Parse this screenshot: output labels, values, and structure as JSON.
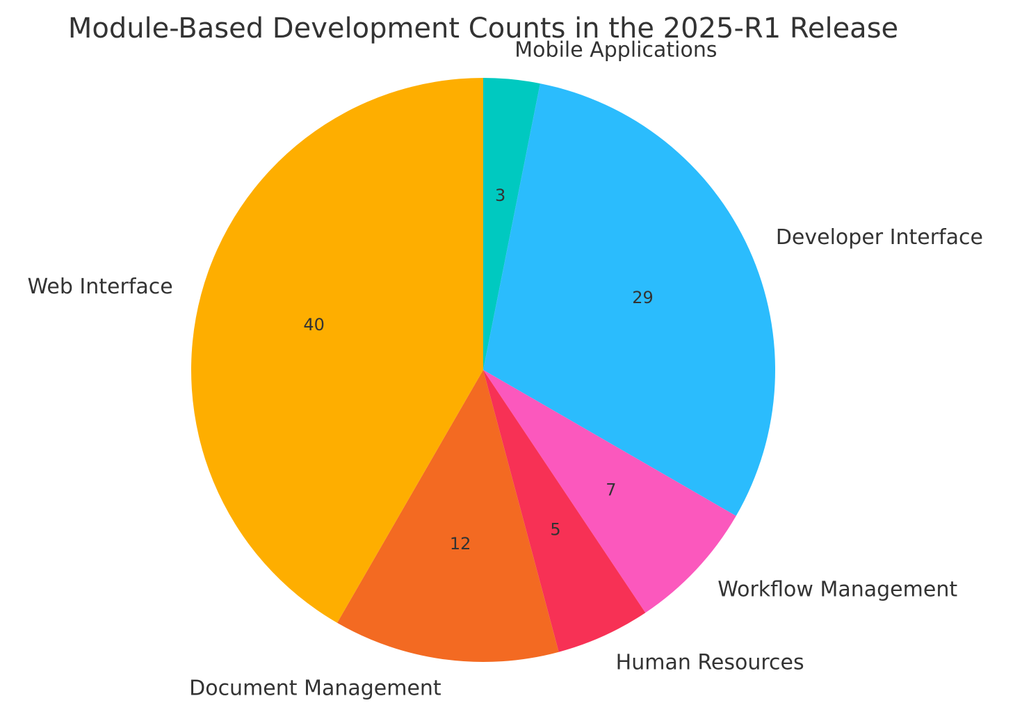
{
  "chart_data": {
    "type": "pie",
    "title": "Module-Based Development Counts in the 2025-R1 Release",
    "start_angle_deg": 90,
    "direction": "clockwise",
    "slices": [
      {
        "label": "Mobile Applications",
        "value": 3,
        "color": "#00c9c0"
      },
      {
        "label": "Developer Interface",
        "value": 29,
        "color": "#2bbcfd"
      },
      {
        "label": "Workflow Management",
        "value": 7,
        "color": "#fb58bd"
      },
      {
        "label": "Human Resources",
        "value": 5,
        "color": "#f73155"
      },
      {
        "label": "Document Management",
        "value": 12,
        "color": "#f36a22"
      },
      {
        "label": "Web Interface",
        "value": 40,
        "color": "#feae00"
      }
    ]
  }
}
